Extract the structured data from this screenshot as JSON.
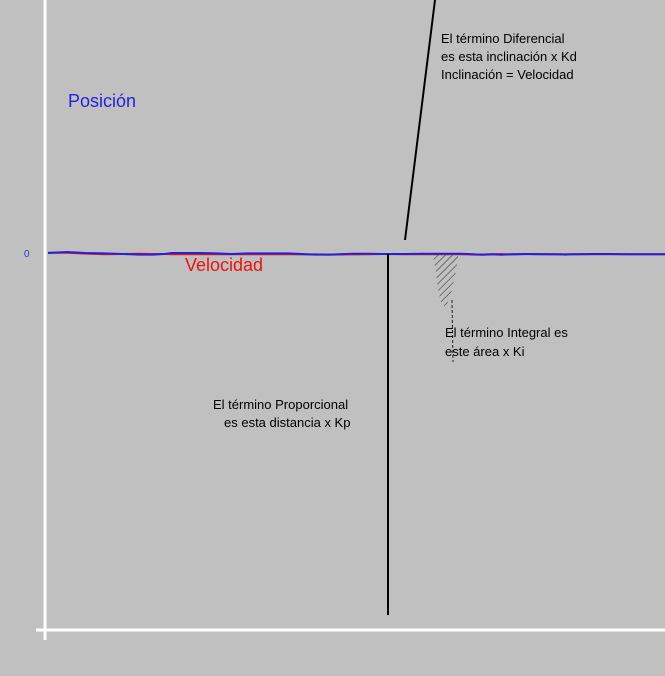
{
  "chart_data": {
    "type": "line",
    "title": "",
    "xlabel": "",
    "ylabel": "",
    "y_tick_labels": [
      "0"
    ],
    "grid": false,
    "background_color": "#c0c0c0",
    "axis_color": "#ffffff",
    "series": [
      {
        "name": "Posición",
        "color": "#2222dd",
        "points": [
          [
            0,
            5
          ],
          [
            5,
            10
          ],
          [
            10,
            5
          ],
          [
            15,
            3
          ],
          [
            20,
            0
          ],
          [
            24,
            -3
          ],
          [
            28,
            -3
          ],
          [
            31,
            0
          ],
          [
            33,
            5
          ],
          [
            40,
            5
          ],
          [
            44,
            4
          ],
          [
            49,
            0
          ],
          [
            53,
            3
          ],
          [
            64,
            3
          ],
          [
            71,
            -3
          ],
          [
            75,
            -3
          ],
          [
            81,
            1
          ],
          [
            85,
            1
          ],
          [
            89,
            0
          ],
          [
            95,
            0
          ],
          [
            100,
            1
          ],
          [
            110,
            1
          ],
          [
            112,
            0
          ],
          [
            114,
            -2
          ],
          [
            116,
            -3
          ],
          [
            117,
            -2
          ],
          [
            118,
            -1
          ],
          [
            119,
            -2
          ],
          [
            121,
            -4
          ],
          [
            121.5,
            -3
          ],
          [
            123,
            -2
          ],
          [
            125,
            -1
          ],
          [
            127,
            0
          ],
          [
            130,
            -1
          ],
          [
            134,
            -1
          ],
          [
            137,
            -2
          ],
          [
            138,
            -3
          ],
          [
            139,
            -2
          ],
          [
            141,
            -1
          ],
          [
            145,
            0
          ],
          [
            150,
            0
          ],
          [
            155,
            -1
          ],
          [
            160,
            -1
          ],
          [
            165,
            -1
          ]
        ]
      },
      {
        "name": "Velocidad",
        "color": "#ee1111",
        "points": [
          [
            0,
            6
          ],
          [
            5,
            6
          ],
          [
            10,
            2
          ],
          [
            15,
            -1
          ],
          [
            20,
            0
          ],
          [
            24,
            1
          ],
          [
            28,
            0
          ],
          [
            31,
            0
          ],
          [
            33,
            -1
          ],
          [
            40,
            -1
          ],
          [
            44,
            -1
          ],
          [
            49,
            -1
          ],
          [
            53,
            -1
          ],
          [
            64,
            -1
          ],
          [
            71,
            -2
          ],
          [
            75,
            -3
          ],
          [
            81,
            -2
          ],
          [
            85,
            -1
          ],
          [
            89,
            0
          ],
          [
            95,
            -1
          ],
          [
            100,
            -1
          ],
          [
            110,
            -1
          ],
          [
            112,
            -2
          ],
          [
            114,
            -3
          ],
          [
            116,
            -4
          ],
          [
            117,
            -3
          ],
          [
            118,
            -2
          ],
          [
            119,
            -1
          ],
          [
            121,
            0
          ],
          [
            121.5,
            -1
          ],
          [
            123,
            -1
          ],
          [
            125,
            -1
          ],
          [
            127,
            0
          ],
          [
            130,
            0
          ],
          [
            134,
            -1
          ],
          [
            137,
            -1
          ],
          [
            138,
            -1
          ],
          [
            139,
            -1
          ],
          [
            141,
            -1
          ],
          [
            145,
            -1
          ],
          [
            150,
            -1
          ],
          [
            155,
            -1
          ],
          [
            160,
            -1
          ],
          [
            165,
            -1
          ]
        ]
      }
    ],
    "annotations": {
      "posicion": "Posición",
      "velocidad": "Velocidad",
      "diferencial": [
        "El término Diferencial",
        "es esta inclinación x Kd",
        "Inclinación = Velocidad"
      ],
      "integral": [
        "El término Integral es",
        "este área x Ki"
      ],
      "proporcional": [
        "El término Proporcional",
        "es esta distancia x Kp"
      ]
    }
  }
}
